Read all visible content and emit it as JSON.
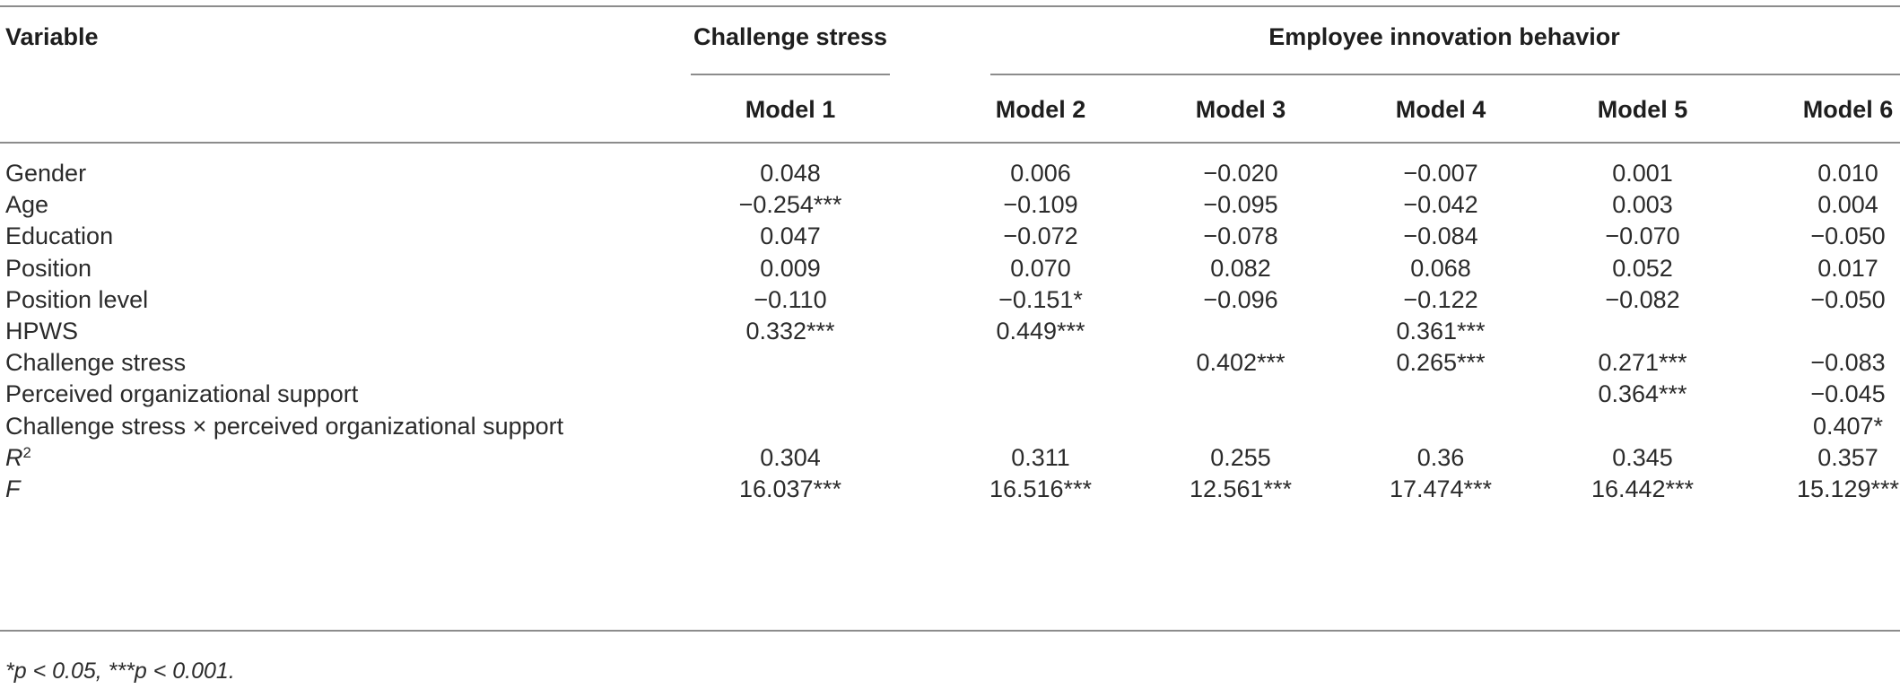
{
  "table": {
    "col_variable": "Variable",
    "group_challenge": "Challenge stress",
    "group_innovation": "Employee innovation behavior",
    "models": [
      "Model 1",
      "Model 2",
      "Model 3",
      "Model 4",
      "Model 5",
      "Model 6"
    ],
    "rows": [
      {
        "label": "Gender",
        "values": [
          "0.048",
          "0.006",
          "−0.020",
          "−0.007",
          "0.001",
          "0.010"
        ]
      },
      {
        "label": "Age",
        "values": [
          "−0.254***",
          "−0.109",
          "−0.095",
          "−0.042",
          "0.003",
          "0.004"
        ]
      },
      {
        "label": "Education",
        "values": [
          "0.047",
          "−0.072",
          "−0.078",
          "−0.084",
          "−0.070",
          "−0.050"
        ]
      },
      {
        "label": "Position",
        "values": [
          "0.009",
          "0.070",
          "0.082",
          "0.068",
          "0.052",
          "0.017"
        ]
      },
      {
        "label": "Position level",
        "values": [
          "−0.110",
          "−0.151*",
          "−0.096",
          "−0.122",
          "−0.082",
          "−0.050"
        ]
      },
      {
        "label": "HPWS",
        "values": [
          "0.332***",
          "0.449***",
          "",
          "0.361***",
          "",
          ""
        ]
      },
      {
        "label": "Challenge stress",
        "values": [
          "",
          "",
          "0.402***",
          "0.265***",
          "0.271***",
          "−0.083"
        ]
      },
      {
        "label": "Perceived organizational support",
        "values": [
          "",
          "",
          "",
          "",
          "0.364***",
          "−0.045"
        ]
      },
      {
        "label": "Challenge stress × perceived organizational support",
        "values": [
          "",
          "",
          "",
          "",
          "",
          "0.407*"
        ]
      },
      {
        "label": "R",
        "label_sup": "2",
        "italic": true,
        "values": [
          "0.304",
          "0.311",
          "0.255",
          "0.36",
          "0.345",
          "0.357"
        ]
      },
      {
        "label": "F",
        "italic": true,
        "values": [
          "16.037***",
          "16.516***",
          "12.561***",
          "17.474***",
          "16.442***",
          "15.129***"
        ]
      }
    ],
    "footnote": "*p < 0.05, ***p < 0.001."
  }
}
